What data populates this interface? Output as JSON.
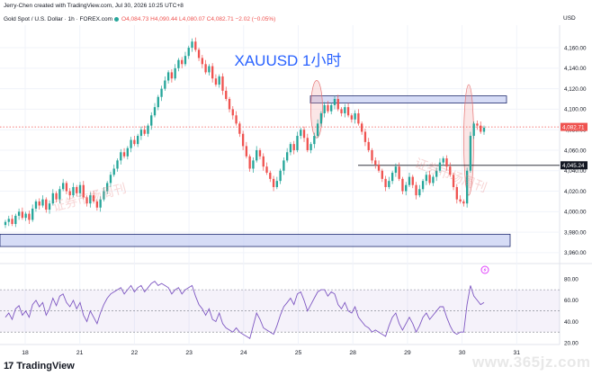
{
  "caption": "Jerry-Chen created with TradingView.com, Jul 30, 2026 10:25 UTC+8",
  "legend": {
    "symbol": "Gold Spot / U.S. Dollar · 1h · FOREX.com",
    "ohlc": "O4,084.73 H4,090.44 L4,080.07 C4,082.71 −2.02 (−0.05%)"
  },
  "currency": "USD",
  "chart_title": "XAUUSD 1小时",
  "watermark_text": "证券市场周刊",
  "footer": {
    "brand": "TradingView",
    "logo": "17"
  },
  "site_watermark": "www.365jz.com",
  "price_tags": {
    "current": "4,082.71",
    "level": "4,045.24"
  },
  "alert_icon": "lightning-alert-icon",
  "colors": {
    "up": "#26a69a",
    "down": "#ef5350",
    "zone_fill": "#c5cdf2",
    "zone_stroke": "#1e2a6e",
    "rsi": "#7e57c2"
  },
  "chart_data": [
    {
      "type": "candlestick",
      "title": "XAUUSD 1小时",
      "x_ticks": [
        "18",
        "21",
        "22",
        "23",
        "24",
        "25",
        "28",
        "29",
        "30",
        "31"
      ],
      "y_ticks": [
        "4,160.00",
        "4,140.00",
        "4,120.00",
        "4,100.00",
        "4,080.00",
        "4,060.00",
        "4,040.00",
        "4,020.00",
        "4,000.00",
        "3,980.00",
        "3,960.00"
      ],
      "ylim": [
        3952,
        4182
      ],
      "current_price": 4082.71,
      "horizontal_line": 4045.24,
      "zones": [
        {
          "label": "resistance",
          "low": 4106,
          "high": 4113
        },
        {
          "label": "support",
          "low": 3966,
          "high": 3978
        }
      ],
      "closes": [
        3990,
        3993,
        3988,
        3996,
        4000,
        3994,
        3998,
        3992,
        4003,
        4010,
        4006,
        4012,
        4002,
        4008,
        4018,
        4012,
        4022,
        4028,
        4020,
        4016,
        4024,
        4018,
        4026,
        4014,
        4008,
        4016,
        4010,
        4004,
        4012,
        4020,
        4028,
        4036,
        4042,
        4050,
        4058,
        4054,
        4062,
        4070,
        4066,
        4074,
        4080,
        4076,
        4084,
        4094,
        4102,
        4112,
        4120,
        4128,
        4136,
        4130,
        4140,
        4148,
        4144,
        4152,
        4160,
        4166,
        4158,
        4150,
        4144,
        4136,
        4142,
        4130,
        4124,
        4132,
        4118,
        4110,
        4100,
        4094,
        4086,
        4076,
        4064,
        4054,
        4042,
        4050,
        4060,
        4054,
        4044,
        4038,
        4032,
        4024,
        4030,
        4040,
        4050,
        4058,
        4066,
        4060,
        4074,
        4080,
        4072,
        4060,
        4066,
        4074,
        4086,
        4096,
        4104,
        4098,
        4104,
        4110,
        4100,
        4096,
        4102,
        4094,
        4090,
        4096,
        4086,
        4078,
        4068,
        4060,
        4050,
        4046,
        4040,
        4032,
        4024,
        4030,
        4038,
        4044,
        4032,
        4020,
        4026,
        4034,
        4026,
        4016,
        4022,
        4030,
        4036,
        4028,
        4034,
        4040,
        4048,
        4052,
        4044,
        4036,
        4024,
        4012,
        4010,
        4008,
        4040,
        4074,
        4086,
        4084,
        4078,
        4082
      ],
      "rsi": {
        "y_ticks": [
          "80.00",
          "60.00",
          "40.00",
          "20.00"
        ],
        "ylim": [
          20,
          82
        ],
        "levels": [
          70,
          50,
          30
        ],
        "values": [
          44,
          48,
          42,
          52,
          55,
          46,
          50,
          44,
          56,
          60,
          54,
          58,
          46,
          52,
          62,
          55,
          64,
          66,
          58,
          54,
          60,
          52,
          58,
          46,
          40,
          50,
          44,
          38,
          48,
          56,
          62,
          66,
          68,
          70,
          72,
          66,
          70,
          74,
          68,
          72,
          74,
          68,
          72,
          76,
          78,
          74,
          76,
          74,
          72,
          66,
          70,
          72,
          66,
          70,
          72,
          74,
          64,
          56,
          52,
          46,
          52,
          42,
          40,
          48,
          38,
          34,
          32,
          30,
          34,
          30,
          28,
          26,
          24,
          36,
          48,
          42,
          34,
          32,
          30,
          28,
          36,
          46,
          54,
          58,
          62,
          56,
          66,
          68,
          60,
          50,
          56,
          62,
          68,
          70,
          70,
          64,
          68,
          66,
          56,
          52,
          58,
          50,
          48,
          54,
          44,
          40,
          36,
          34,
          30,
          32,
          30,
          28,
          26,
          36,
          44,
          48,
          38,
          32,
          38,
          44,
          38,
          30,
          36,
          44,
          48,
          42,
          46,
          50,
          54,
          54,
          44,
          36,
          30,
          28,
          30,
          30,
          56,
          74,
          64,
          60,
          56,
          58
        ]
      }
    }
  ]
}
